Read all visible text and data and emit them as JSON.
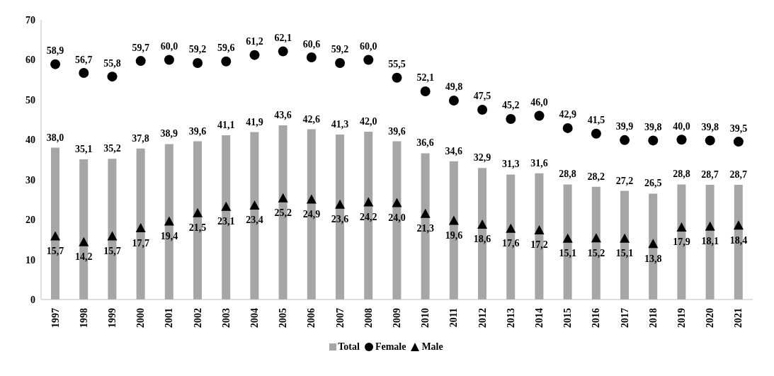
{
  "chart_data": {
    "type": "bar",
    "categories": [
      "1997",
      "1998",
      "1999",
      "2000",
      "2001",
      "2002",
      "2003",
      "2004",
      "2005",
      "2006",
      "2007",
      "2008",
      "2009",
      "2010",
      "2011",
      "2012",
      "2013",
      "2014",
      "2015",
      "2016",
      "2017",
      "2018",
      "2019",
      "2020",
      "2021"
    ],
    "series": [
      {
        "name": "Total",
        "color": "#a6a6a6",
        "values": [
          38.0,
          35.1,
          35.2,
          37.8,
          38.9,
          39.6,
          41.1,
          41.9,
          43.6,
          42.6,
          41.3,
          42.0,
          39.6,
          36.6,
          34.6,
          32.9,
          31.3,
          31.6,
          28.8,
          28.2,
          27.2,
          26.5,
          28.8,
          28.7,
          28.7
        ],
        "value_labels": [
          "38,0",
          "35,1",
          "35,2",
          "37,8",
          "38,9",
          "39,6",
          "41,1",
          "41,9",
          "43,6",
          "42,6",
          "41,3",
          "42,0",
          "39,6",
          "36,6",
          "34,6",
          "32,9",
          "31,3",
          "31,6",
          "28,8",
          "28,2",
          "27,2",
          "26,5",
          "28,8",
          "28,7",
          "28,7"
        ]
      },
      {
        "name": "Female",
        "type": "scatter",
        "marker": "circle",
        "color": "#000000",
        "values": [
          58.9,
          56.7,
          55.8,
          59.7,
          60.0,
          59.2,
          59.6,
          61.2,
          62.1,
          60.6,
          59.2,
          60.0,
          55.5,
          52.1,
          49.8,
          47.5,
          45.2,
          46.0,
          42.9,
          41.5,
          39.9,
          39.8,
          40.0,
          39.8,
          39.5
        ],
        "value_labels": [
          "58,9",
          "56,7",
          "55,8",
          "59,7",
          "60,0",
          "59,2",
          "59,6",
          "61,2",
          "62,1",
          "60,6",
          "59,2",
          "60,0",
          "55,5",
          "52,1",
          "49,8",
          "47,5",
          "45,2",
          "46,0",
          "42,9",
          "41,5",
          "39,9",
          "39,8",
          "40,0",
          "39,8",
          "39,5"
        ]
      },
      {
        "name": "Male",
        "type": "scatter",
        "marker": "triangle",
        "color": "#000000",
        "values": [
          15.7,
          14.2,
          15.7,
          17.7,
          19.4,
          21.5,
          23.1,
          23.4,
          25.2,
          24.9,
          23.6,
          24.2,
          24.0,
          21.3,
          19.6,
          18.6,
          17.6,
          17.2,
          15.1,
          15.2,
          15.1,
          13.8,
          17.9,
          18.1,
          18.4
        ],
        "value_labels": [
          "15,7",
          "14,2",
          "15,7",
          "17,7",
          "19,4",
          "21,5",
          "23,1",
          "23,4",
          "25,2",
          "24,9",
          "23,6",
          "24,2",
          "24,0",
          "21,3",
          "19,6",
          "18,6",
          "17,6",
          "17,2",
          "15,1",
          "15,2",
          "15,1",
          "13,8",
          "17,9",
          "18,1",
          "18,4"
        ]
      }
    ],
    "ylim": [
      0,
      70
    ],
    "yticks": [
      0,
      10,
      20,
      30,
      40,
      50,
      60,
      70
    ],
    "legend": "bottom"
  }
}
